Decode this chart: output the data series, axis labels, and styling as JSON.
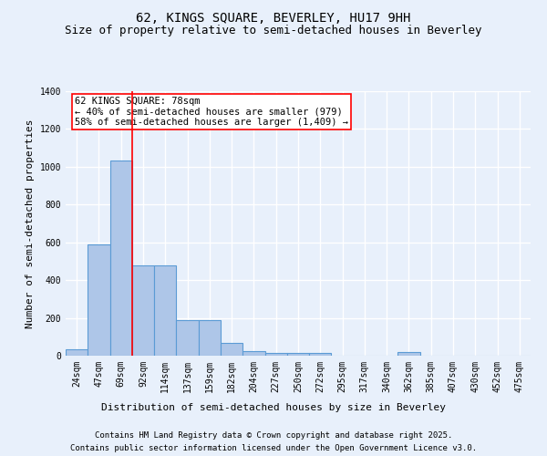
{
  "title1": "62, KINGS SQUARE, BEVERLEY, HU17 9HH",
  "title2": "Size of property relative to semi-detached houses in Beverley",
  "xlabel": "Distribution of semi-detached houses by size in Beverley",
  "ylabel": "Number of semi-detached properties",
  "categories": [
    "24sqm",
    "47sqm",
    "69sqm",
    "92sqm",
    "114sqm",
    "137sqm",
    "159sqm",
    "182sqm",
    "204sqm",
    "227sqm",
    "250sqm",
    "272sqm",
    "295sqm",
    "317sqm",
    "340sqm",
    "362sqm",
    "385sqm",
    "407sqm",
    "430sqm",
    "452sqm",
    "475sqm"
  ],
  "values": [
    35,
    590,
    1035,
    480,
    480,
    190,
    190,
    70,
    22,
    15,
    15,
    15,
    0,
    0,
    0,
    20,
    0,
    0,
    0,
    0,
    0
  ],
  "bar_color": "#aec6e8",
  "bar_edge_color": "#5b9bd5",
  "vline_x": 2.5,
  "vline_color": "red",
  "annotation_text": "62 KINGS SQUARE: 78sqm\n← 40% of semi-detached houses are smaller (979)\n58% of semi-detached houses are larger (1,409) →",
  "annotation_box_color": "white",
  "annotation_box_edge": "red",
  "ylim": [
    0,
    1400
  ],
  "yticks": [
    0,
    200,
    400,
    600,
    800,
    1000,
    1200,
    1400
  ],
  "footer1": "Contains HM Land Registry data © Crown copyright and database right 2025.",
  "footer2": "Contains public sector information licensed under the Open Government Licence v3.0.",
  "bg_color": "#e8f0fb",
  "plot_bg_color": "#e8f0fb",
  "grid_color": "white",
  "title_fontsize": 10,
  "subtitle_fontsize": 9,
  "axis_label_fontsize": 8,
  "tick_fontsize": 7,
  "annotation_fontsize": 7.5,
  "footer_fontsize": 6.5
}
